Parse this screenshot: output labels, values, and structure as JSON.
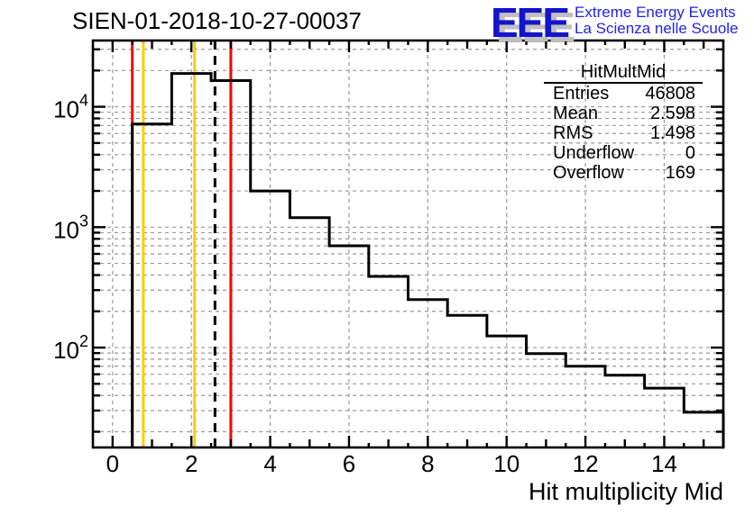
{
  "logo": {
    "acronym": "EEE",
    "line1": "Extreme Energy Events",
    "line2": "La Scienza nelle Scuole",
    "letters_color": "#1414cc",
    "text_color": "#2222ee",
    "shadow_color": "#c0c0c0"
  },
  "stats": {
    "title": "HitMultMid",
    "rows": [
      {
        "label": "Entries",
        "value": "46808"
      },
      {
        "label": "Mean",
        "value": "2.598"
      },
      {
        "label": "RMS",
        "value": "1.498"
      },
      {
        "label": "Underflow",
        "value": "0"
      },
      {
        "label": "Overflow",
        "value": "169"
      }
    ]
  },
  "chart_data": {
    "type": "bar",
    "style": "step-histogram-outline",
    "title": "SIEN-01-2018-10-27-00037",
    "xlabel": "Hit multiplicity Mid",
    "ylabel": "",
    "yscale": "log",
    "grid": true,
    "xlim": [
      -0.5,
      15.5
    ],
    "ylim": [
      14.8,
      35500
    ],
    "bin_width": 1,
    "bin_centers": [
      1,
      2,
      3,
      4,
      5,
      6,
      7,
      8,
      9,
      10,
      11,
      12,
      13,
      14,
      15
    ],
    "values": [
      7200,
      18900,
      16500,
      2000,
      1200,
      700,
      390,
      250,
      185,
      125,
      89,
      70,
      59,
      46,
      29
    ],
    "x_major_ticks": [
      0,
      2,
      4,
      6,
      8,
      10,
      12,
      14
    ],
    "x_minor_tick_step": 0.5,
    "y_decade_exponents": [
      2,
      3,
      4
    ],
    "vlines": [
      {
        "x": 0.5,
        "color": "#ff0000",
        "style": "solid",
        "name": "red-marker-low"
      },
      {
        "x": 0.78,
        "color": "#ffcc00",
        "style": "solid",
        "name": "yellow-marker-low"
      },
      {
        "x": 2.08,
        "color": "#ffcc00",
        "style": "solid",
        "name": "yellow-marker-high"
      },
      {
        "x": 2.598,
        "color": "#000000",
        "style": "dashed",
        "name": "mean-marker"
      },
      {
        "x": 3.0,
        "color": "#ff0000",
        "style": "solid",
        "name": "red-marker-high"
      }
    ],
    "colors": {
      "histogram": "#000000",
      "grid": "#999999",
      "frame": "#000000",
      "text": "#000000"
    }
  }
}
